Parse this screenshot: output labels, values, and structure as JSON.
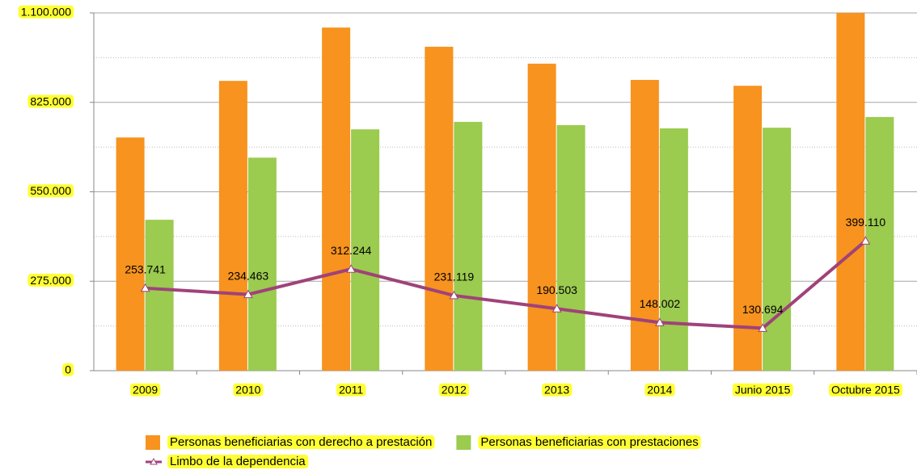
{
  "chart_data": {
    "type": "bar",
    "categories": [
      "2009",
      "2010",
      "2011",
      "2012",
      "2013",
      "2014",
      "Junio 2015",
      "Octubre 2015"
    ],
    "series": [
      {
        "name": "Personas beneficiarias con derecho a prestación",
        "color": "#f7931e",
        "type": "bar",
        "values": [
          717000,
          891000,
          1055000,
          996000,
          944000,
          894000,
          876000,
          1100000
        ]
      },
      {
        "name": "Personas beneficiarias con prestaciones",
        "color": "#9bcb4f",
        "type": "bar",
        "values": [
          464000,
          655000,
          742000,
          765000,
          755000,
          745000,
          747000,
          780000
        ]
      },
      {
        "name": "Limbo de la dependencia",
        "color": "#a0427a",
        "type": "line",
        "values": [
          253741,
          234463,
          312244,
          231119,
          190503,
          148002,
          130694,
          399110
        ],
        "value_labels": [
          "253.741",
          "234.463",
          "312.244",
          "231.119",
          "190.503",
          "148.002",
          "130.694",
          "399.110"
        ]
      }
    ],
    "ylim": [
      0,
      1100000
    ],
    "yticks": [
      0,
      {
        "value": 275000,
        "label": "275.000"
      },
      {
        "value": 550000,
        "label": "550.000"
      },
      {
        "value": 825000,
        "label": "825.000"
      },
      {
        "value": 1100000,
        "label": "1.100.000"
      }
    ],
    "grid": true,
    "legend": "bottom"
  }
}
